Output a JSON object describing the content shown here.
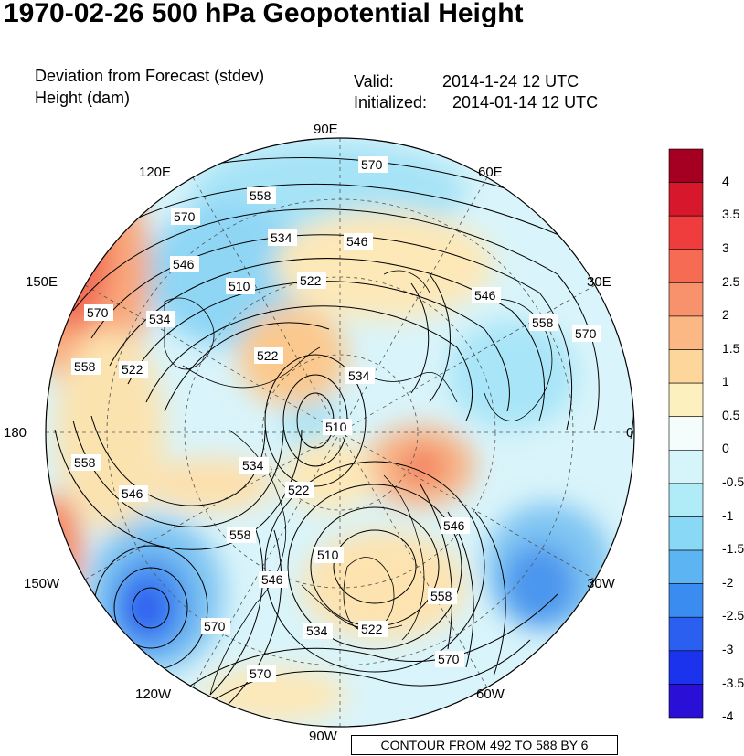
{
  "title": "1970-02-26 500 hPa Geopotential Height",
  "subtitle_left_1": "Deviation from Forecast (stdev)",
  "subtitle_left_2": "Height (dam)",
  "valid_label": "Valid:",
  "valid_value": "2014-1-24 12 UTC",
  "initialized_label": "Initialized:",
  "initialized_value": "2014-01-14 12 UTC",
  "longitude_labels": {
    "e90": "90E",
    "e60": "60E",
    "e30": "30E",
    "zero": "0",
    "w30": "30W",
    "w60": "60W",
    "w90": "90W",
    "w120": "120W",
    "w150": "150W",
    "l180": "180",
    "e150": "150E",
    "e120": "120E"
  },
  "contour_info": "CONTOUR FROM 492 TO 588 BY 6",
  "colorbar": {
    "labels": [
      "4",
      "3.5",
      "3",
      "2.5",
      "2",
      "1.5",
      "1",
      "0.5",
      "0",
      "-0.5",
      "-1",
      "-1.5",
      "-2",
      "-2.5",
      "-3",
      "-3.5",
      "-4"
    ],
    "colors": [
      "#a50021",
      "#d7172c",
      "#ef3d3d",
      "#f56b54",
      "#f7926c",
      "#fbb784",
      "#fdd69b",
      "#fdf0bf",
      "#f5fcfc",
      "#d6f5fb",
      "#b0ebf8",
      "#88d8f6",
      "#5cb5f2",
      "#3b8cf0",
      "#2a5ff0",
      "#1b33ec",
      "#2a10d6"
    ]
  },
  "contour_labels": [
    {
      "text": "570",
      "note": "top"
    },
    {
      "text": "558",
      "note": "top-left"
    },
    {
      "text": "534",
      "note": "upper"
    },
    {
      "text": "546",
      "note": "upper-right"
    },
    {
      "text": "522",
      "note": "upper-center"
    },
    {
      "text": "510",
      "note": "upper-left"
    },
    {
      "text": "546",
      "note": "right"
    },
    {
      "text": "558",
      "note": "right"
    },
    {
      "text": "570",
      "note": "far-right"
    },
    {
      "text": "570",
      "note": "left"
    },
    {
      "text": "570",
      "note": "upper-left-edge"
    },
    {
      "text": "546",
      "note": "left-upper"
    },
    {
      "text": "534",
      "note": "left"
    },
    {
      "text": "522",
      "note": "left"
    },
    {
      "text": "558",
      "note": "far-left"
    },
    {
      "text": "522",
      "note": "center-upper"
    },
    {
      "text": "534",
      "note": "center"
    },
    {
      "text": "510",
      "note": "center"
    },
    {
      "text": "558",
      "note": "left-lower"
    },
    {
      "text": "546",
      "note": "left-lower"
    },
    {
      "text": "534",
      "note": "center-left"
    },
    {
      "text": "522",
      "note": "center"
    },
    {
      "text": "558",
      "note": "center-lower"
    },
    {
      "text": "546",
      "note": "center-lower"
    },
    {
      "text": "510",
      "note": "lower"
    },
    {
      "text": "546",
      "note": "right-lower"
    },
    {
      "text": "558",
      "note": "right-lower"
    },
    {
      "text": "534",
      "note": "lower"
    },
    {
      "text": "522",
      "note": "lower"
    },
    {
      "text": "570",
      "note": "lower-right"
    },
    {
      "text": "570",
      "note": "lower-left"
    },
    {
      "text": "570",
      "note": "bottom"
    }
  ]
}
